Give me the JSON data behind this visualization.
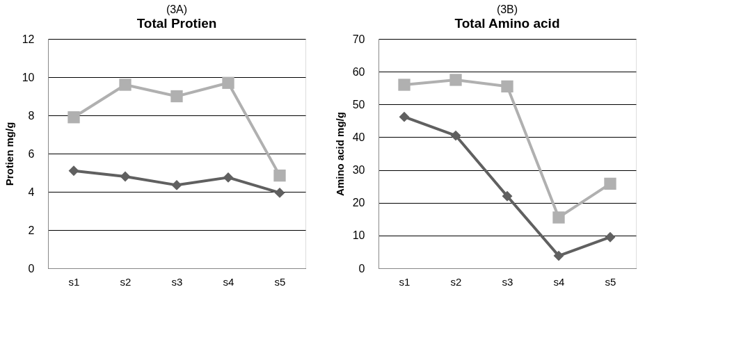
{
  "chart_data": [
    {
      "type": "line",
      "title": "(3A)",
      "subtitle": "Total Protien",
      "ylabel": "Protien  mg/g",
      "categories": [
        "s1",
        "s2",
        "s3",
        "s4",
        "s5"
      ],
      "ylim": [
        0,
        12
      ],
      "yticks": [
        0,
        2,
        4,
        6,
        8,
        10,
        12
      ],
      "grid": "y",
      "legend": false,
      "series": [
        {
          "color": "#606060",
          "marker": "diamond",
          "values": [
            5.1,
            4.8,
            4.35,
            4.75,
            3.95
          ]
        },
        {
          "color": "#b0b0b0",
          "marker": "square",
          "values": [
            7.9,
            9.6,
            9.0,
            9.7,
            4.85
          ]
        }
      ]
    },
    {
      "type": "line",
      "title": "(3B)",
      "subtitle": "Total Amino acid",
      "ylabel": "Amino acid mg/g",
      "categories": [
        "s1",
        "s2",
        "s3",
        "s4",
        "s5"
      ],
      "ylim": [
        0,
        70
      ],
      "yticks": [
        0,
        10,
        20,
        30,
        40,
        50,
        60,
        70
      ],
      "grid": "y",
      "legend": false,
      "series": [
        {
          "color": "#606060",
          "marker": "diamond",
          "values": [
            46.2,
            40.5,
            22,
            3.8,
            9.5
          ]
        },
        {
          "color": "#b0b0b0",
          "marker": "square",
          "values": [
            56,
            57.5,
            55.5,
            15.5,
            25.8
          ]
        }
      ]
    }
  ]
}
